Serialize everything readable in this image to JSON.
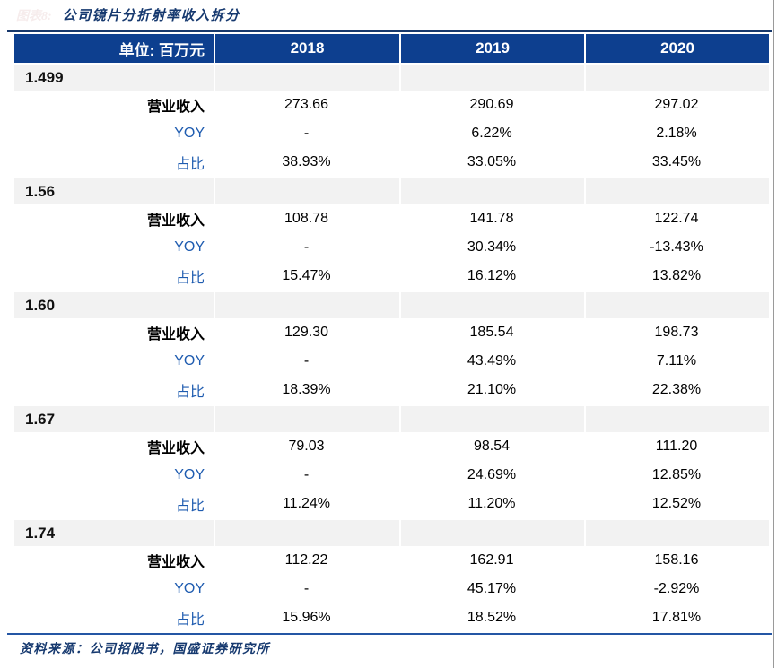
{
  "figure": {
    "label": "图表8:",
    "title": "公司镜片分折射率收入拆分"
  },
  "table": {
    "unit_header": "单位: 百万元",
    "year_columns": [
      "2018",
      "2019",
      "2020"
    ],
    "row_labels": [
      "营业收入",
      "YOY",
      "占比"
    ],
    "groups": [
      {
        "name": "1.499",
        "rows": [
          [
            "273.66",
            "290.69",
            "297.02"
          ],
          [
            "-",
            "6.22%",
            "2.18%"
          ],
          [
            "38.93%",
            "33.05%",
            "33.45%"
          ]
        ]
      },
      {
        "name": "1.56",
        "rows": [
          [
            "108.78",
            "141.78",
            "122.74"
          ],
          [
            "-",
            "30.34%",
            "-13.43%"
          ],
          [
            "15.47%",
            "16.12%",
            "13.82%"
          ]
        ]
      },
      {
        "name": "1.60",
        "rows": [
          [
            "129.30",
            "185.54",
            "198.73"
          ],
          [
            "-",
            "43.49%",
            "7.11%"
          ],
          [
            "18.39%",
            "21.10%",
            "22.38%"
          ]
        ]
      },
      {
        "name": "1.67",
        "rows": [
          [
            "79.03",
            "98.54",
            "111.20"
          ],
          [
            "-",
            "24.69%",
            "12.85%"
          ],
          [
            "11.24%",
            "11.20%",
            "12.52%"
          ]
        ]
      },
      {
        "name": "1.74",
        "rows": [
          [
            "112.22",
            "162.91",
            "158.16"
          ],
          [
            "-",
            "45.17%",
            "-2.92%"
          ],
          [
            "15.96%",
            "18.52%",
            "17.81%"
          ]
        ]
      }
    ]
  },
  "footer": {
    "source": "资料来源：公司招股书，国盛证券研究所"
  },
  "colors": {
    "header_bg": "#0d3f8f",
    "accent_blue": "#1f5cb0",
    "title_navy": "#16396f",
    "group_row_bg": "#f2f2f2",
    "bottom_rule": "#2456a4"
  }
}
